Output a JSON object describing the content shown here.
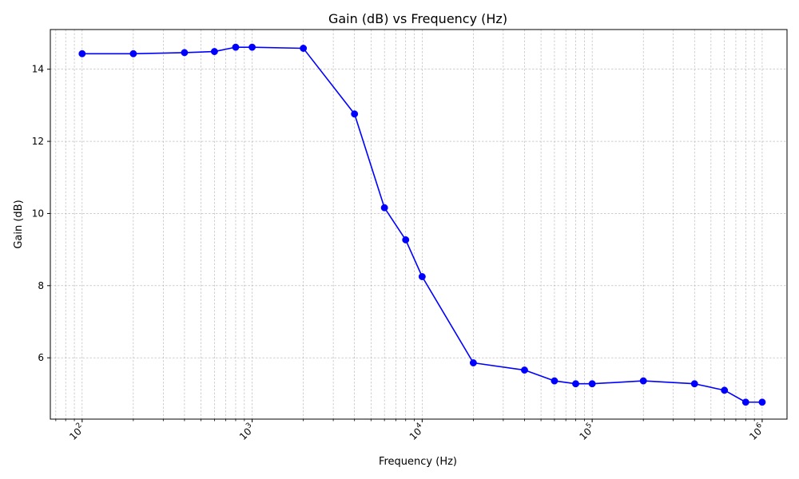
{
  "chart_data": {
    "type": "line",
    "title": "Gain (dB) vs Frequency (Hz)",
    "xlabel": "Frequency (Hz)",
    "ylabel": "Gain (dB)",
    "x_scale": "log",
    "xlim": [
      65,
      1400000
    ],
    "ylim": [
      4.3,
      15.1
    ],
    "grid": true,
    "legend": "none",
    "series": [
      {
        "color": "#0000ff",
        "marker": "circle",
        "x": [
          100,
          200,
          400,
          600,
          800,
          1000,
          2000,
          4000,
          6000,
          8000,
          10000,
          20000,
          40000,
          60000,
          80000,
          100000,
          200000,
          400000,
          600000,
          800000,
          1000000
        ],
        "y": [
          14.43,
          14.43,
          14.46,
          14.49,
          14.61,
          14.61,
          14.58,
          12.76,
          10.16,
          9.27,
          8.25,
          5.86,
          5.66,
          5.36,
          5.28,
          5.28,
          5.36,
          5.28,
          5.1,
          4.77,
          4.77
        ]
      }
    ],
    "x_ticks": [
      {
        "value": 100,
        "base": "10",
        "exp": "2"
      },
      {
        "value": 1000,
        "base": "10",
        "exp": "3"
      },
      {
        "value": 10000,
        "base": "10",
        "exp": "4"
      },
      {
        "value": 100000,
        "base": "10",
        "exp": "5"
      },
      {
        "value": 1000000,
        "base": "10",
        "exp": "6"
      }
    ],
    "y_ticks": [
      {
        "value": 6,
        "label": "6"
      },
      {
        "value": 8,
        "label": "8"
      },
      {
        "value": 10,
        "label": "10"
      },
      {
        "value": 12,
        "label": "12"
      },
      {
        "value": 14,
        "label": "14"
      }
    ]
  }
}
